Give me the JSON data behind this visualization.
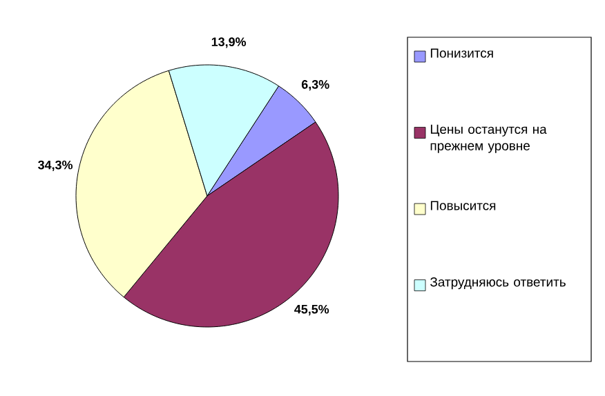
{
  "chart_data": {
    "type": "pie",
    "categories": [
      "Понизится",
      "Цены останутся на прежнем уровне",
      "Повысится",
      "Затрудняюсь ответить"
    ],
    "values": [
      6.3,
      45.5,
      34.3,
      13.9
    ],
    "colors": [
      "#9999ff",
      "#993366",
      "#ffffcc",
      "#ccffff"
    ],
    "value_labels": [
      "6,3%",
      "45,5%",
      "34,3%",
      "13,9%"
    ],
    "legend": "right"
  }
}
